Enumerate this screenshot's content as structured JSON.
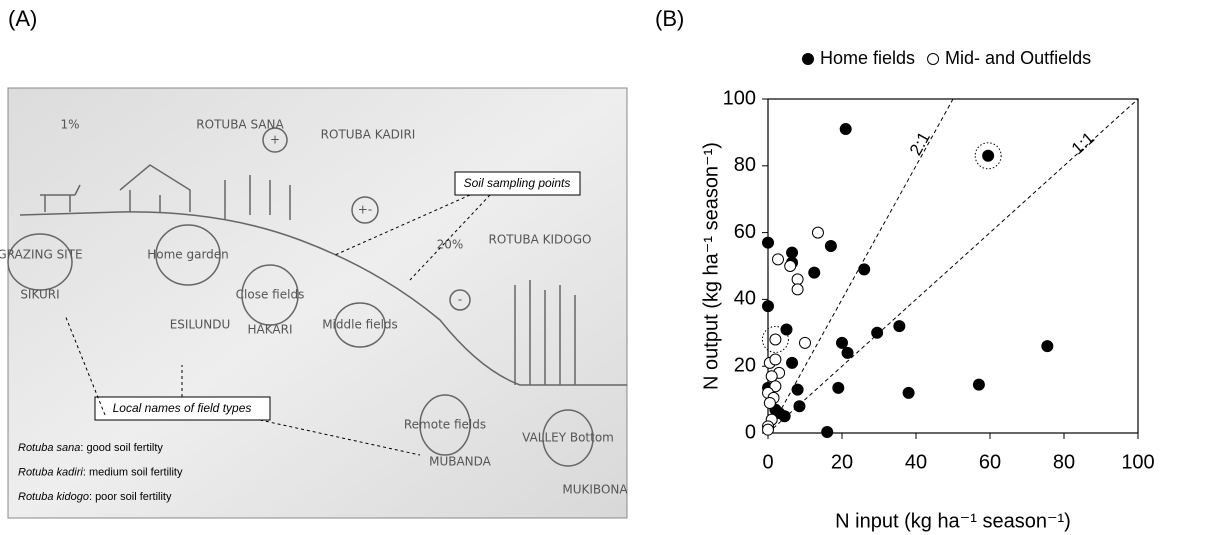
{
  "panel_a": {
    "label": "(A)",
    "callouts": [
      "Soil sampling points",
      "Local names of field types"
    ],
    "legend": [
      {
        "term": "Rotuba sana",
        "desc": ": good soil fertilty"
      },
      {
        "term": "Rotuba kadiri",
        "desc": ": medium soil fertility"
      },
      {
        "term": "Rotuba kidogo",
        "desc": ": poor soil fertility"
      }
    ],
    "sketch_labels": [
      "1%",
      "ROTUBA SANA",
      "+",
      "ROTUBA KADIRI",
      "+-",
      "20%",
      "ROTUBA KIDOGO",
      "-",
      "GRAZING SITE",
      "SIKURI",
      "Home garden",
      "ESILUNDU",
      "Close fields",
      "HAKARI",
      "Middle fields",
      "Remote fields",
      "MUBANDA",
      "VALLEY Bottom",
      "MUKIBONA"
    ]
  },
  "chart_data": {
    "type": "scatter",
    "panel_label": "(B)",
    "xlabel": "N input (kg ha⁻¹ season⁻¹)",
    "ylabel": "N output (kg ha⁻¹ season⁻¹)",
    "xlim": [
      0,
      100
    ],
    "ylim": [
      0,
      100
    ],
    "xticks": [
      0,
      20,
      40,
      60,
      80,
      100
    ],
    "yticks": [
      0,
      20,
      40,
      60,
      80,
      100
    ],
    "legend_position": "top",
    "series": [
      {
        "name": "Home fields",
        "color": "#000000",
        "filled": true,
        "x": [
          21,
          59.5,
          0,
          6.5,
          6.5,
          17,
          12.5,
          26,
          0,
          5,
          29.5,
          35.5,
          20,
          21.5,
          6.5,
          8,
          0,
          19,
          8.5,
          38,
          57,
          75.5,
          16,
          4.5,
          2,
          3
        ],
        "values": [
          91,
          83,
          57,
          54,
          51,
          56,
          48,
          49,
          38,
          31,
          30,
          32,
          27,
          24,
          21,
          13,
          13.5,
          13.5,
          8,
          12,
          14.5,
          26,
          0.3,
          5,
          7,
          6
        ]
      },
      {
        "name": "Mid- and Outfields",
        "color": "#000000",
        "filled": false,
        "x": [
          13.5,
          2.7,
          6,
          8,
          8,
          10,
          2,
          0.5,
          2,
          3,
          1,
          2,
          0,
          1.5,
          0.5,
          1,
          0,
          0
        ],
        "values": [
          60,
          52,
          50,
          46,
          43,
          27,
          28,
          21,
          22,
          18,
          17,
          14,
          12,
          10.5,
          9,
          4,
          2,
          1
        ]
      }
    ],
    "reference_lines": [
      {
        "label": "2:1",
        "slope": 2
      },
      {
        "label": "1:1",
        "slope": 1
      }
    ]
  }
}
